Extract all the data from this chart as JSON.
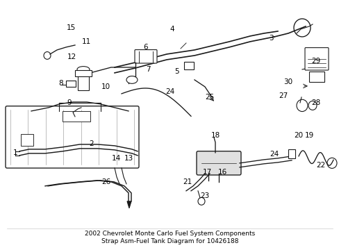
{
  "title": "2002 Chevrolet Monte Carlo Fuel System Components\nStrap Asm-Fuel Tank Diagram for 10426188",
  "background_color": "#ffffff",
  "line_color": "#1a1a1a",
  "title_fontsize": 6.5,
  "fig_width": 4.89,
  "fig_height": 3.6,
  "dpi": 100,
  "label_fontsize": 7.5
}
